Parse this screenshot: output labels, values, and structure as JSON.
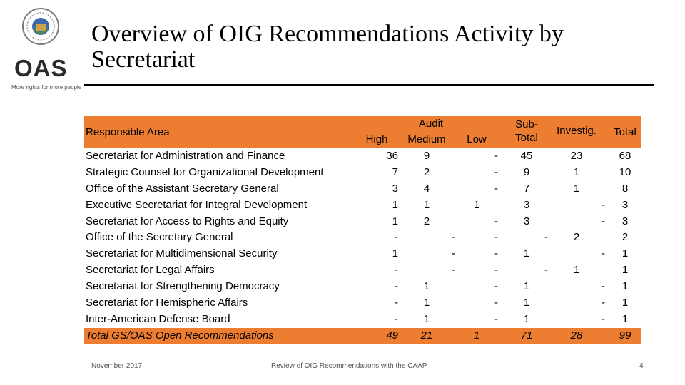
{
  "title": "Overview of OIG Recommendations Activity by Secretariat",
  "logo": {
    "text": "OAS",
    "tagline": "More rights for more people",
    "colors": {
      "seal": "#3b6aa8",
      "text": "#2b2b2b"
    }
  },
  "accent_color": "#ed7d31",
  "table": {
    "headers": {
      "area": "Responsible Area",
      "audit_group": "Audit",
      "high": "High",
      "medium": "Medium",
      "low": "Low",
      "subtotal_line1": "Sub-",
      "subtotal_line2": "Total",
      "investig": "Investig.",
      "total": "Total"
    },
    "rows": [
      {
        "area": "Secretariat for Administration and Finance",
        "high": "36",
        "medium": "9",
        "low": "-",
        "subtotal": "45",
        "investig": "23",
        "total": "68"
      },
      {
        "area": "Strategic Counsel for Organizational Development",
        "high": "7",
        "medium": "2",
        "low": "-",
        "subtotal": "9",
        "investig": "1",
        "total": "10"
      },
      {
        "area": "Office of the Assistant Secretary General",
        "high": "3",
        "medium": "4",
        "low": "-",
        "subtotal": "7",
        "investig": "1",
        "total": "8"
      },
      {
        "area": "Executive Secretariat for Integral Development",
        "high": "1",
        "medium": "1",
        "low": "1",
        "subtotal": "3",
        "investig": "-",
        "total": "3"
      },
      {
        "area": "Secretariat for Access to Rights and Equity",
        "high": "1",
        "medium": "2",
        "low": "-",
        "subtotal": "3",
        "investig": "-",
        "total": "3"
      },
      {
        "area": "Office of the Secretary General",
        "high": "-",
        "medium": "-",
        "low": "-",
        "subtotal": "-",
        "investig": "2",
        "total": "2"
      },
      {
        "area": "Secretariat for Multidimensional Security",
        "high": "1",
        "medium": "-",
        "low": "-",
        "subtotal": "1",
        "investig": "-",
        "total": "1"
      },
      {
        "area": "Secretariat for Legal Affairs",
        "high": "-",
        "medium": "-",
        "low": "-",
        "subtotal": "-",
        "investig": "1",
        "total": "1"
      },
      {
        "area": "Secretariat for Strengthening Democracy",
        "high": "-",
        "medium": "1",
        "low": "-",
        "subtotal": "1",
        "investig": "-",
        "total": "1"
      },
      {
        "area": "Secretariat for Hemispheric Affairs",
        "high": "-",
        "medium": "1",
        "low": "-",
        "subtotal": "1",
        "investig": "-",
        "total": "1"
      },
      {
        "area": "Inter-American Defense Board",
        "high": "-",
        "medium": "1",
        "low": "-",
        "subtotal": "1",
        "investig": "-",
        "total": "1"
      }
    ],
    "total_row": {
      "area": "Total GS/OAS Open Recommendations",
      "high": "49",
      "medium": "21",
      "low": "1",
      "subtotal": "71",
      "investig": "28",
      "total": "99"
    }
  },
  "footer": {
    "date": "November 2017",
    "center": "Review of OIG Recommendations with the CAAP",
    "page": "4"
  }
}
